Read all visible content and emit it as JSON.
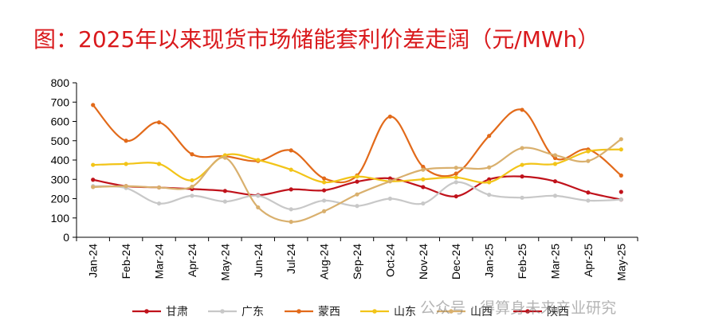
{
  "title": "图：2025年以来现货市场储能套利价差走阔（元/MWh）",
  "watermark": "公众号 · 得算身未来产业研究",
  "chart_data": {
    "type": "line",
    "categories": [
      "Jan-24",
      "Feb-24",
      "Mar-24",
      "Apr-24",
      "May-24",
      "Jun-24",
      "Jul-24",
      "Aug-24",
      "Sep-24",
      "Oct-24",
      "Nov-24",
      "Dec-24",
      "Jan-25",
      "Feb-25",
      "Mar-25",
      "Apr-25",
      "May-25"
    ],
    "ylim": [
      0,
      800
    ],
    "yticks": [
      0,
      100,
      200,
      300,
      400,
      500,
      600,
      700,
      800
    ],
    "smooth": true,
    "grid": false,
    "legend_position": "bottom",
    "series": [
      {
        "name": "甘肃",
        "color": "#c0121b",
        "values": [
          298,
          265,
          258,
          250,
          240,
          218,
          248,
          243,
          288,
          305,
          260,
          212,
          300,
          315,
          290,
          232,
          195
        ]
      },
      {
        "name": "广东",
        "color": "#c8c8c8",
        "values": [
          265,
          255,
          175,
          215,
          185,
          215,
          145,
          190,
          162,
          200,
          175,
          285,
          220,
          205,
          215,
          190,
          195
        ]
      },
      {
        "name": "蒙西",
        "color": "#e26a1a",
        "values": [
          685,
          500,
          595,
          430,
          420,
          395,
          450,
          305,
          320,
          625,
          365,
          330,
          525,
          660,
          410,
          455,
          320
        ]
      },
      {
        "name": "山东",
        "color": "#f2c418",
        "values": [
          375,
          380,
          380,
          295,
          425,
          400,
          350,
          285,
          315,
          290,
          300,
          310,
          285,
          375,
          380,
          445,
          455
        ]
      },
      {
        "name": "山西",
        "color": "#d9b06e",
        "values": [
          260,
          265,
          258,
          262,
          412,
          155,
          80,
          135,
          222,
          290,
          350,
          360,
          362,
          462,
          425,
          395,
          508
        ]
      },
      {
        "name": "陕西",
        "color": "#c0121b",
        "values": [
          null,
          null,
          null,
          null,
          null,
          null,
          null,
          null,
          null,
          null,
          null,
          null,
          null,
          null,
          null,
          null,
          235
        ]
      }
    ]
  }
}
